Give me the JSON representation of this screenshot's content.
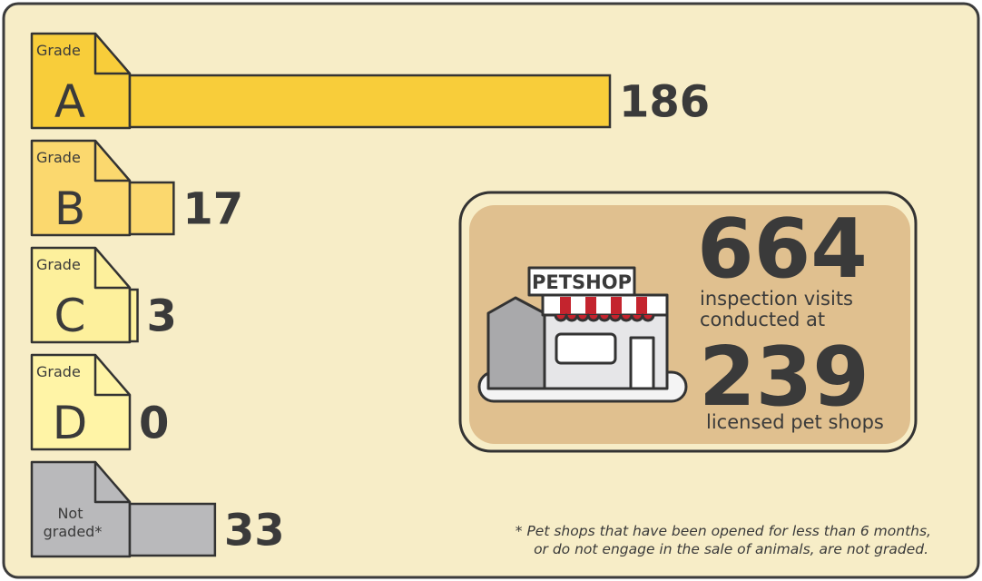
{
  "chart_data": {
    "type": "bar",
    "orientation": "horizontal",
    "grade_label": "Grade",
    "categories": [
      "A",
      "B",
      "C",
      "D",
      "Not graded*"
    ],
    "values": [
      186,
      17,
      3,
      0,
      33
    ],
    "colors": [
      "#f8cd3a",
      "#fbd86e",
      "#fdf09c",
      "#fff4a6",
      "#b9b9bb"
    ],
    "stats": {
      "sign": "PETSHOP",
      "visits": 664,
      "visits_label": [
        "inspection visits",
        "conducted at"
      ],
      "shops": 239,
      "shops_label": "licensed pet shops"
    },
    "footnote": [
      "* Pet shops that have been opened for less than 6 months,",
      "or do not engage in the sale of animals, are not graded."
    ]
  }
}
